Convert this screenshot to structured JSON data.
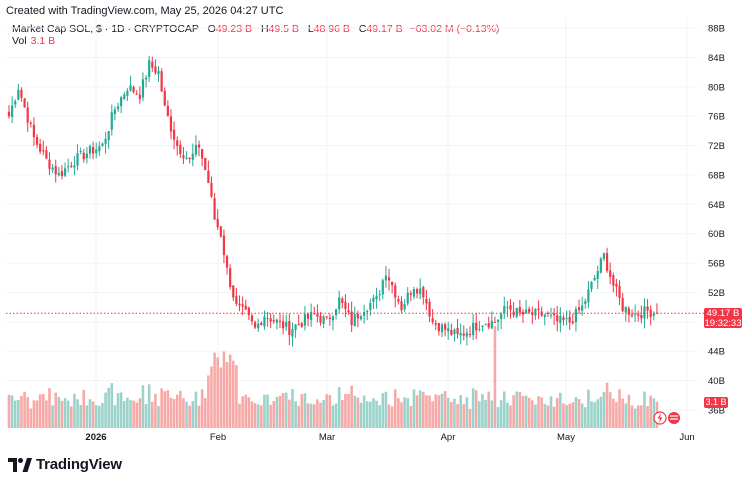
{
  "credit": "Created with TradingView.com, May 25, 2026 04:27 UTC",
  "brand": {
    "name": "TradingView"
  },
  "legend": {
    "symbol": "Market Cap SOL, $ · 1D · CRYPTOCAP",
    "open_label": "O",
    "open": "49.23 B",
    "high_label": "H",
    "high": "49.5 B",
    "low_label": "L",
    "low": "48.96 B",
    "close_label": "C",
    "close": "49.17 B",
    "change": "−63.02 M (−0.13%)",
    "vol_label": "Vol",
    "vol": "3.1 B"
  },
  "price_tag": {
    "value": "49.17 B",
    "countdown": "19:32:33"
  },
  "vol_tag": "3.1 B",
  "colors": {
    "up": "#22ab94",
    "down": "#f23645",
    "vol_up": "#9bd3cb",
    "vol_down": "#f7a9a7"
  },
  "chart_data": {
    "type": "candlestick",
    "y_unit": "B",
    "y_ticks": [
      36,
      40,
      44,
      48,
      52,
      56,
      60,
      64,
      68,
      72,
      76,
      80,
      84,
      88
    ],
    "x_ticks": [
      "2026",
      "Feb",
      "Mar",
      "Apr",
      "May",
      "Jun"
    ],
    "ylim": [
      36,
      89
    ],
    "anchors": [
      [
        0,
        76
      ],
      [
        3,
        80
      ],
      [
        8,
        73
      ],
      [
        12,
        70
      ],
      [
        16,
        68
      ],
      [
        21,
        70
      ],
      [
        25,
        71
      ],
      [
        30,
        72
      ],
      [
        34,
        77
      ],
      [
        38,
        80
      ],
      [
        42,
        79
      ],
      [
        45,
        83
      ],
      [
        48,
        82
      ],
      [
        50,
        77
      ],
      [
        54,
        72
      ],
      [
        58,
        70
      ],
      [
        61,
        72
      ],
      [
        64,
        67
      ],
      [
        66,
        62
      ],
      [
        68,
        60
      ],
      [
        70,
        55
      ],
      [
        73,
        50
      ],
      [
        76,
        49
      ],
      [
        79,
        47
      ],
      [
        82,
        49
      ],
      [
        86,
        48
      ],
      [
        90,
        47
      ],
      [
        94,
        48
      ],
      [
        98,
        49
      ],
      [
        102,
        48
      ],
      [
        106,
        51
      ],
      [
        110,
        48
      ],
      [
        114,
        50
      ],
      [
        118,
        51
      ],
      [
        121,
        55
      ],
      [
        123,
        53
      ],
      [
        126,
        50
      ],
      [
        130,
        53
      ],
      [
        133,
        52
      ],
      [
        136,
        48
      ],
      [
        140,
        47
      ],
      [
        144,
        46
      ],
      [
        148,
        47
      ],
      [
        152,
        48
      ],
      [
        156,
        48
      ],
      [
        160,
        50
      ],
      [
        164,
        49
      ],
      [
        168,
        49
      ],
      [
        172,
        49
      ],
      [
        176,
        48
      ],
      [
        180,
        48
      ],
      [
        184,
        50
      ],
      [
        188,
        54
      ],
      [
        191,
        57
      ],
      [
        194,
        53
      ],
      [
        197,
        50
      ],
      [
        201,
        49
      ],
      [
        205,
        49.5
      ],
      [
        208,
        49.17
      ]
    ],
    "last_close": 49.17,
    "last_volume": 3.1
  }
}
